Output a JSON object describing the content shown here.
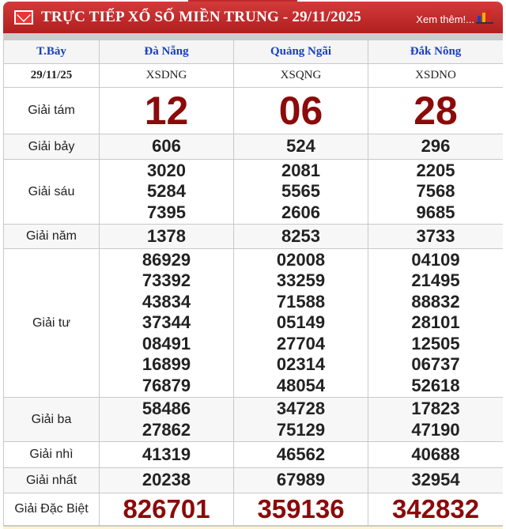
{
  "header": {
    "title": "TRỰC TIẾP XỔ SỐ MIỀN TRUNG - 29/11/2025",
    "more": "Xem thêm!..."
  },
  "columns": {
    "day": "T.Bảy",
    "provinces": [
      "Đà Nẵng",
      "Quảng Ngãi",
      "Đắk Nông"
    ]
  },
  "date": "29/11/25",
  "codes": [
    "XSDNG",
    "XSQNG",
    "XSDNO"
  ],
  "prizes": [
    {
      "label": "Giải tám",
      "values": [
        [
          "12"
        ],
        [
          "06"
        ],
        [
          "28"
        ]
      ]
    },
    {
      "label": "Giải bảy",
      "values": [
        [
          "606"
        ],
        [
          "524"
        ],
        [
          "296"
        ]
      ]
    },
    {
      "label": "Giải sáu",
      "values": [
        [
          "3020",
          "5284",
          "7395"
        ],
        [
          "2081",
          "5565",
          "2606"
        ],
        [
          "2205",
          "7568",
          "9685"
        ]
      ]
    },
    {
      "label": "Giải năm",
      "values": [
        [
          "1378"
        ],
        [
          "8253"
        ],
        [
          "3733"
        ]
      ]
    },
    {
      "label": "Giải tư",
      "values": [
        [
          "86929",
          "73392",
          "43834",
          "37344",
          "08491",
          "16899",
          "76879"
        ],
        [
          "02008",
          "33259",
          "71588",
          "05149",
          "27704",
          "02314",
          "48054"
        ],
        [
          "04109",
          "21495",
          "88832",
          "28101",
          "12505",
          "06737",
          "52618"
        ]
      ]
    },
    {
      "label": "Giải ba",
      "values": [
        [
          "58486",
          "27862"
        ],
        [
          "34728",
          "75129"
        ],
        [
          "17823",
          "47190"
        ]
      ]
    },
    {
      "label": "Giải nhì",
      "values": [
        [
          "41319"
        ],
        [
          "46562"
        ],
        [
          "40688"
        ]
      ]
    },
    {
      "label": "Giải nhất",
      "values": [
        [
          "20238"
        ],
        [
          "67989"
        ],
        [
          "32954"
        ]
      ]
    },
    {
      "label": "Giải Đặc Biệt",
      "values": [
        [
          "826701"
        ],
        [
          "359136"
        ],
        [
          "342832"
        ]
      ]
    }
  ],
  "colors": {
    "header": "#c0282e",
    "special": "#8b0a0a",
    "province": "#1a3fc0"
  }
}
